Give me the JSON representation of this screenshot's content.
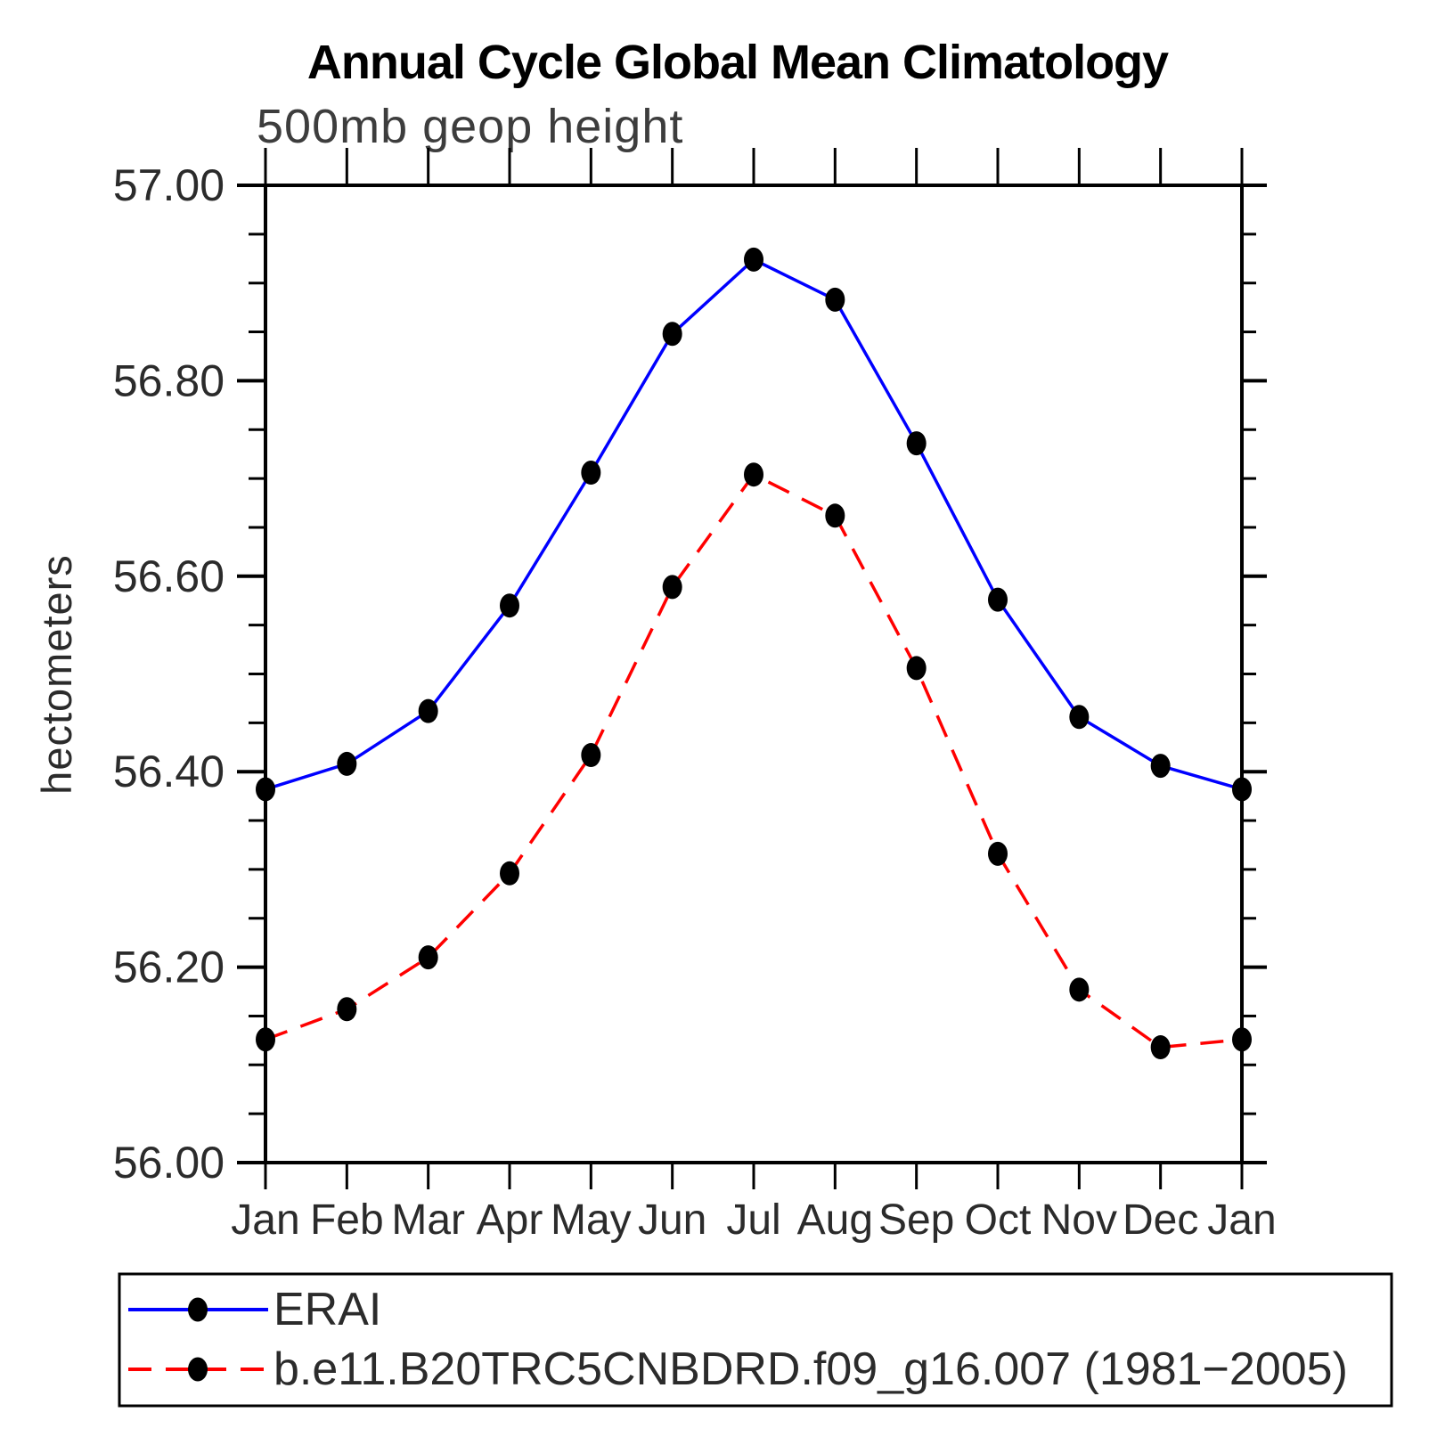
{
  "chart_data": {
    "type": "line",
    "title": "Annual Cycle Global Mean Climatology",
    "subtitle": "500mb geop height",
    "ylabel": "hectometers",
    "xlabel": "",
    "categories": [
      "Jan",
      "Feb",
      "Mar",
      "Apr",
      "May",
      "Jun",
      "Jul",
      "Aug",
      "Sep",
      "Oct",
      "Nov",
      "Dec",
      "Jan"
    ],
    "ylim": [
      56.0,
      57.0
    ],
    "ytick_major_step": 0.2,
    "ytick_minor_step": 0.05,
    "ytick_labels": [
      "56.00",
      "56.20",
      "56.40",
      "56.60",
      "56.80",
      "57.00"
    ],
    "grid": false,
    "legend_position": "bottom-left-box",
    "marker": "filled-circle",
    "marker_color": "#000000",
    "series": [
      {
        "name": "ERAI",
        "color": "#0000ff",
        "style": "solid",
        "values": [
          56.382,
          56.408,
          56.462,
          56.57,
          56.706,
          56.848,
          56.924,
          56.883,
          56.736,
          56.576,
          56.456,
          56.406,
          56.382
        ]
      },
      {
        "name": "b.e11.B20TRC5CNBDRD.f09_g16.007 (1981−2005)",
        "color": "#ff0000",
        "style": "dashed",
        "values": [
          56.126,
          56.157,
          56.21,
          56.296,
          56.417,
          56.589,
          56.704,
          56.662,
          56.506,
          56.316,
          56.177,
          56.118,
          56.126
        ]
      }
    ]
  }
}
